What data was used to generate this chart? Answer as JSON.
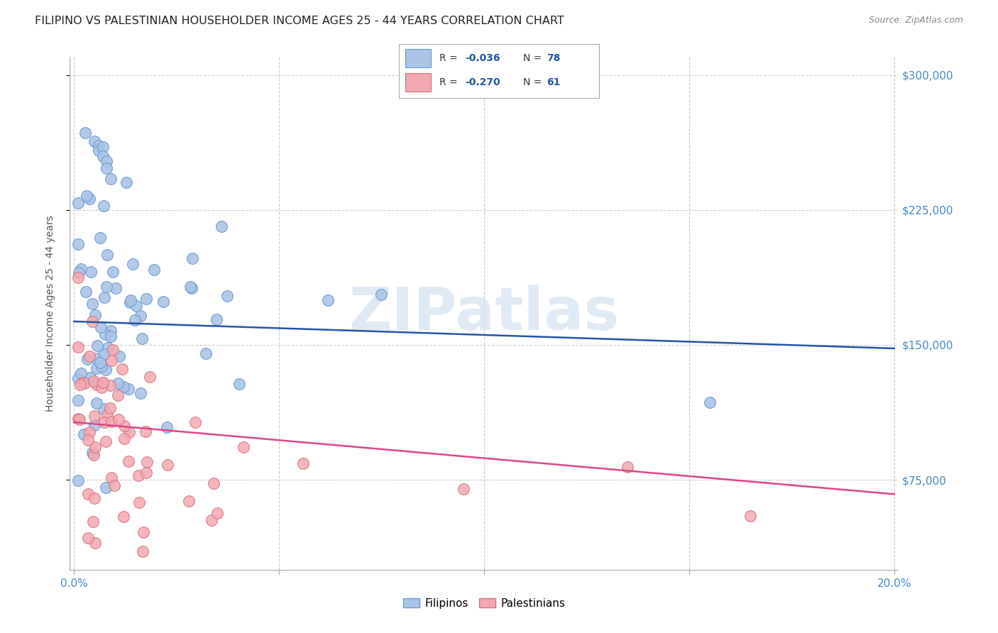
{
  "title": "FILIPINO VS PALESTINIAN HOUSEHOLDER INCOME AGES 25 - 44 YEARS CORRELATION CHART",
  "source": "Source: ZipAtlas.com",
  "ylabel": "Householder Income Ages 25 - 44 years",
  "xlim": [
    0.0,
    0.2
  ],
  "ylim": [
    25000,
    310000
  ],
  "x_ticks": [
    0.0,
    0.05,
    0.1,
    0.15,
    0.2
  ],
  "x_tick_labels": [
    "0.0%",
    "",
    "",
    "",
    "20.0%"
  ],
  "y_ticks": [
    75000,
    150000,
    225000,
    300000
  ],
  "right_y_labels": [
    "$75,000",
    "$150,000",
    "$225,000",
    "$300,000"
  ],
  "filipino_color_face": "#aac4e8",
  "filipino_color_edge": "#6699cc",
  "palestinian_color_face": "#f4a8b0",
  "palestinian_color_edge": "#d07080",
  "trend_filipino_color": "#2255aa",
  "trend_palestinian_color": "#dd4488",
  "legend_text_color": "#333333",
  "legend_value_color": "#2255aa",
  "right_label_color": "#4488cc",
  "watermark": "ZIPatlas",
  "watermark_color": "#ccddef",
  "grid_color": "#cccccc",
  "title_color": "#222222",
  "source_color": "#888888",
  "fil_trend_y0": 163000,
  "fil_trend_y1": 148000,
  "pal_trend_y0": 107000,
  "pal_trend_y1": 67000,
  "filipinos_label": "Filipinos",
  "palestinians_label": "Palestinians",
  "legend_R_fil": "R = -0.036",
  "legend_N_fil": "N = 78",
  "legend_R_pal": "R = -0.270",
  "legend_N_pal": "N = 61"
}
